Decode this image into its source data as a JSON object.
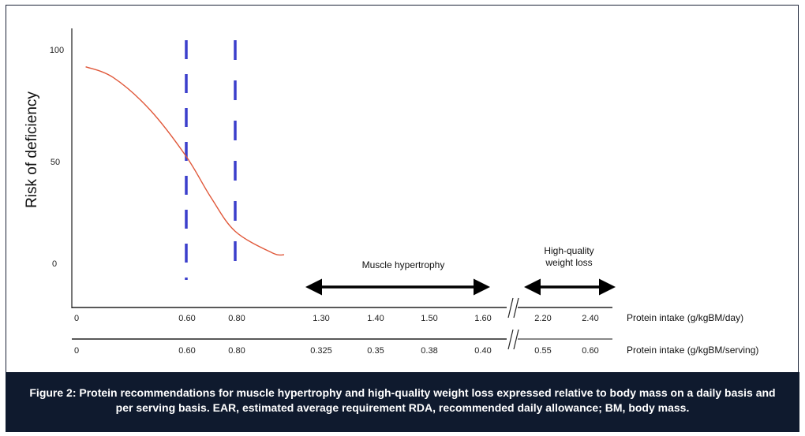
{
  "chart_data": {
    "type": "line",
    "ylabel": "Risk of deficiency",
    "yticks": [
      "100",
      "50",
      "0"
    ],
    "ylim": [
      0,
      100
    ],
    "xaxis_day": {
      "label": "Protein intake (g/kgBM/day)",
      "ticks": [
        "0",
        "0.60",
        "0.80",
        "1.30",
        "1.40",
        "1.50",
        "1.60",
        "2.20",
        "2.40"
      ]
    },
    "xaxis_serving": {
      "label": "Protein intake (g/kgBM/serving)",
      "ticks": [
        "0",
        "0.60",
        "0.80",
        "0.325",
        "0.35",
        "0.38",
        "0.40",
        "0.55",
        "0.60"
      ]
    },
    "axis_break": "between 1.60 and 2.20",
    "series": [
      {
        "name": "Risk curve",
        "color": "#e0583a",
        "x": [
          0.05,
          0.2,
          0.4,
          0.6,
          0.7,
          0.8,
          0.95,
          1.0
        ],
        "y": [
          92,
          87,
          72,
          50,
          31,
          15,
          5,
          4
        ]
      }
    ],
    "reference_lines": [
      {
        "x": 0.6,
        "style": "dashed",
        "color": "#3b3fcc"
      },
      {
        "x": 0.8,
        "style": "dashed",
        "color": "#3b3fcc"
      }
    ],
    "ranges": [
      {
        "label": "Muscle hypertrophy",
        "from": 1.3,
        "to": 1.6
      },
      {
        "label_lines": [
          "High-quality",
          "weight loss"
        ],
        "from": 2.2,
        "to": 2.4
      }
    ]
  },
  "caption": "Figure 2: Protein recommendations for muscle hypertrophy and high-quality weight loss expressed relative to body mass on a daily basis and per serving basis. EAR, estimated average requirement RDA, recommended daily allowance; BM, body mass."
}
